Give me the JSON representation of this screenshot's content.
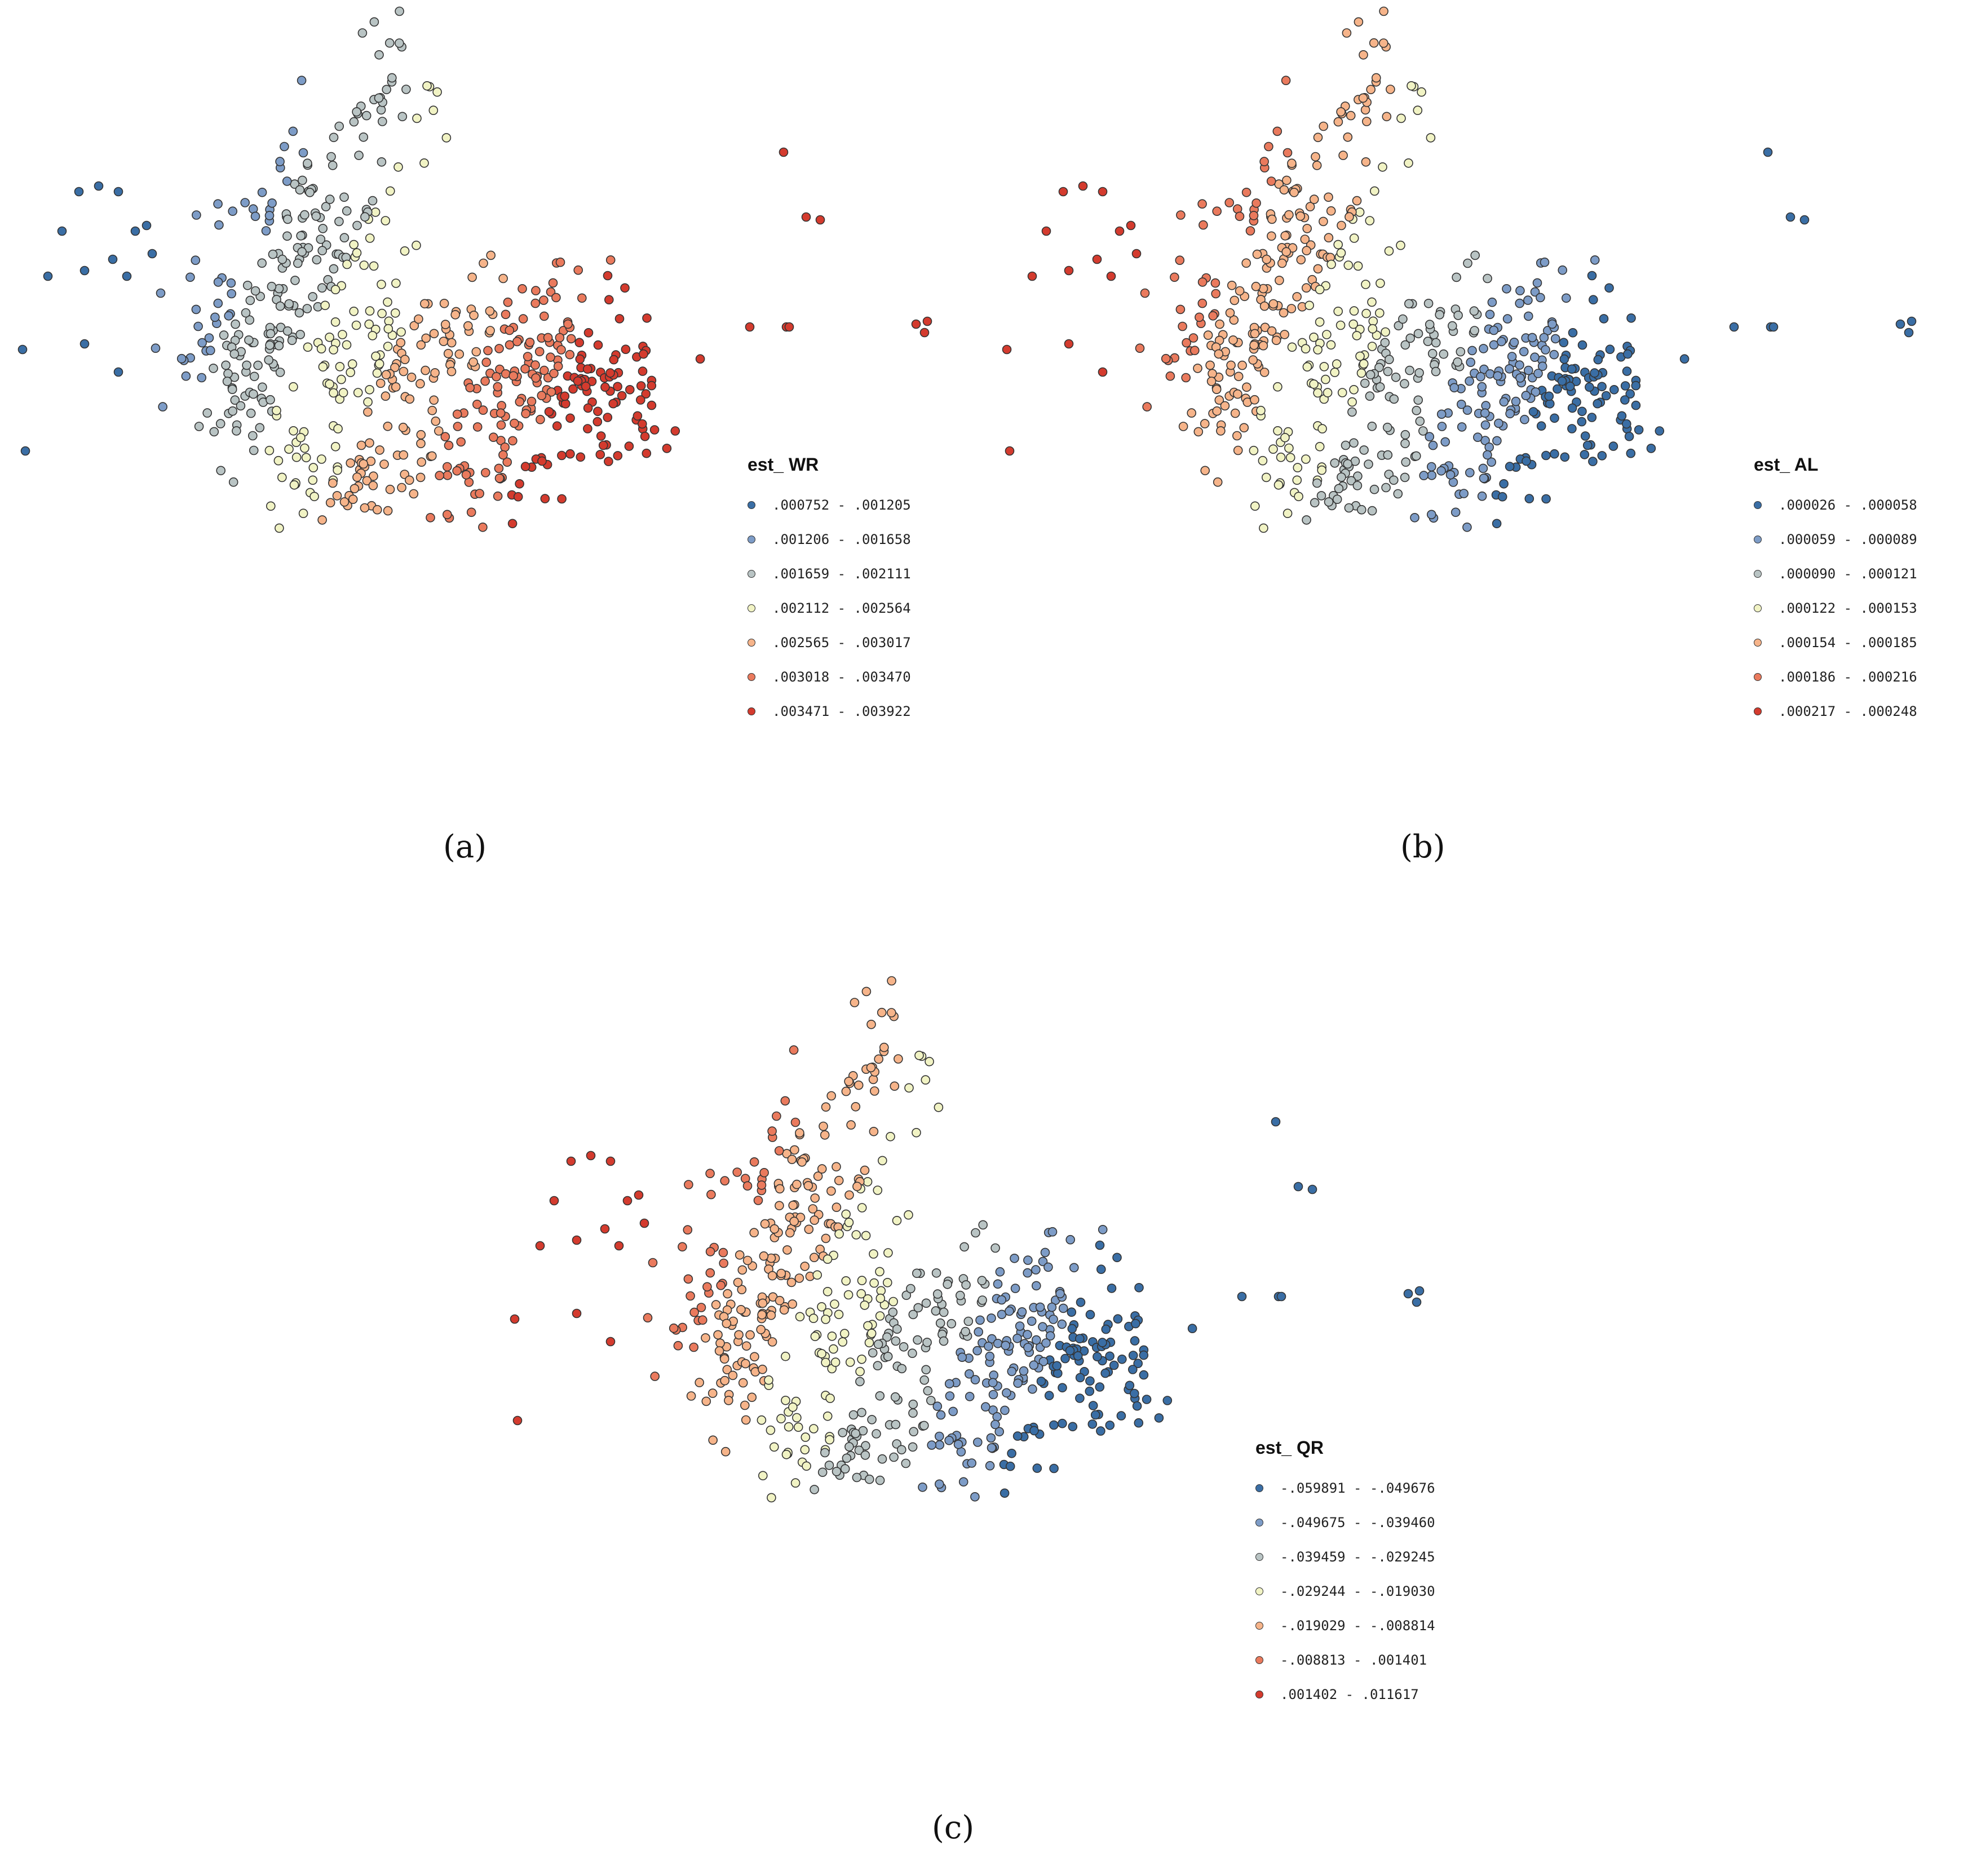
{
  "panels": [
    {
      "id": "a",
      "caption": "(a)",
      "legend": {
        "title": "est_ WR",
        "classes": [
          ".000752 - .001205",
          ".001206 - .001658",
          ".001659 - .002111",
          ".002112 - .002564",
          ".002565 - .003017",
          ".003018 - .003470",
          ".003471 - .003922"
        ]
      },
      "palette": "blue-to-red"
    },
    {
      "id": "b",
      "caption": "(b)",
      "legend": {
        "title": "est_ AL",
        "classes": [
          ".000026 - .000058",
          ".000059 - .000089",
          ".000090 - .000121",
          ".000122 - .000153",
          ".000154 - .000185",
          ".000186 - .000216",
          ".000217 - .000248"
        ]
      },
      "palette": "red-to-blue"
    },
    {
      "id": "c",
      "caption": "(c)",
      "legend": {
        "title": "est_ QR",
        "classes": [
          "-.059891 - -.049676",
          "-.049675 - -.039460",
          "-.039459 - -.029245",
          "-.029244 - -.019030",
          "-.019029 - -.008814",
          "-.008813 - .001401",
          ".001402 - .011617"
        ]
      },
      "palette": "red-to-blue"
    }
  ],
  "class_colors": [
    "#3a6ea5",
    "#7d9cc7",
    "#b9c4c4",
    "#f1f3c4",
    "#f6b48a",
    "#ea7a5d",
    "#d43b2e"
  ],
  "point_stroke": "#333333"
}
